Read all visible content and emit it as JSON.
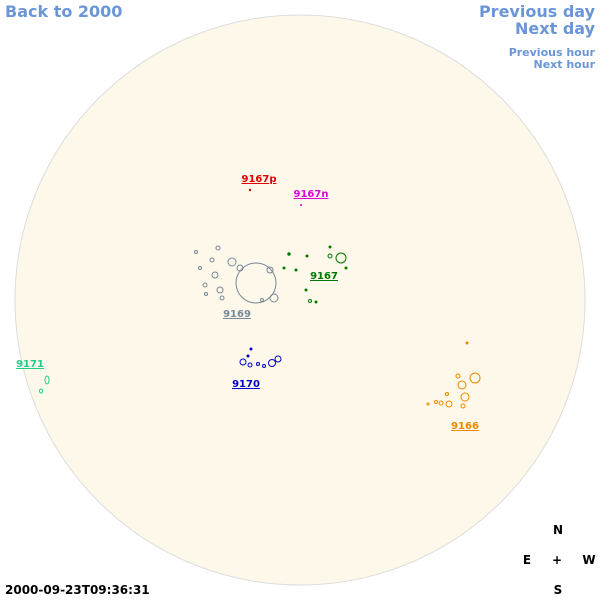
{
  "nav": {
    "back": "Back to 2000",
    "previous_day": "Previous day",
    "next_day": "Next day",
    "previous_hour": "Previous hour",
    "next_hour": "Next hour"
  },
  "groups": [
    {
      "label": "9167p",
      "color": "#dd0000"
    },
    {
      "label": "9167n",
      "color": "#dd00dd"
    },
    {
      "label": "9169",
      "color": "#778899"
    },
    {
      "label": "9167",
      "color": "#007700"
    },
    {
      "label": "9170",
      "color": "#0000cc"
    },
    {
      "label": "9171",
      "color": "#22cc88"
    },
    {
      "label": "9166",
      "color": "#ee8800"
    }
  ],
  "compass": {
    "north": "N",
    "east": "E",
    "center": "+",
    "west": "W",
    "south": "S"
  },
  "timestamp": "2000-09-23T09:36:31"
}
